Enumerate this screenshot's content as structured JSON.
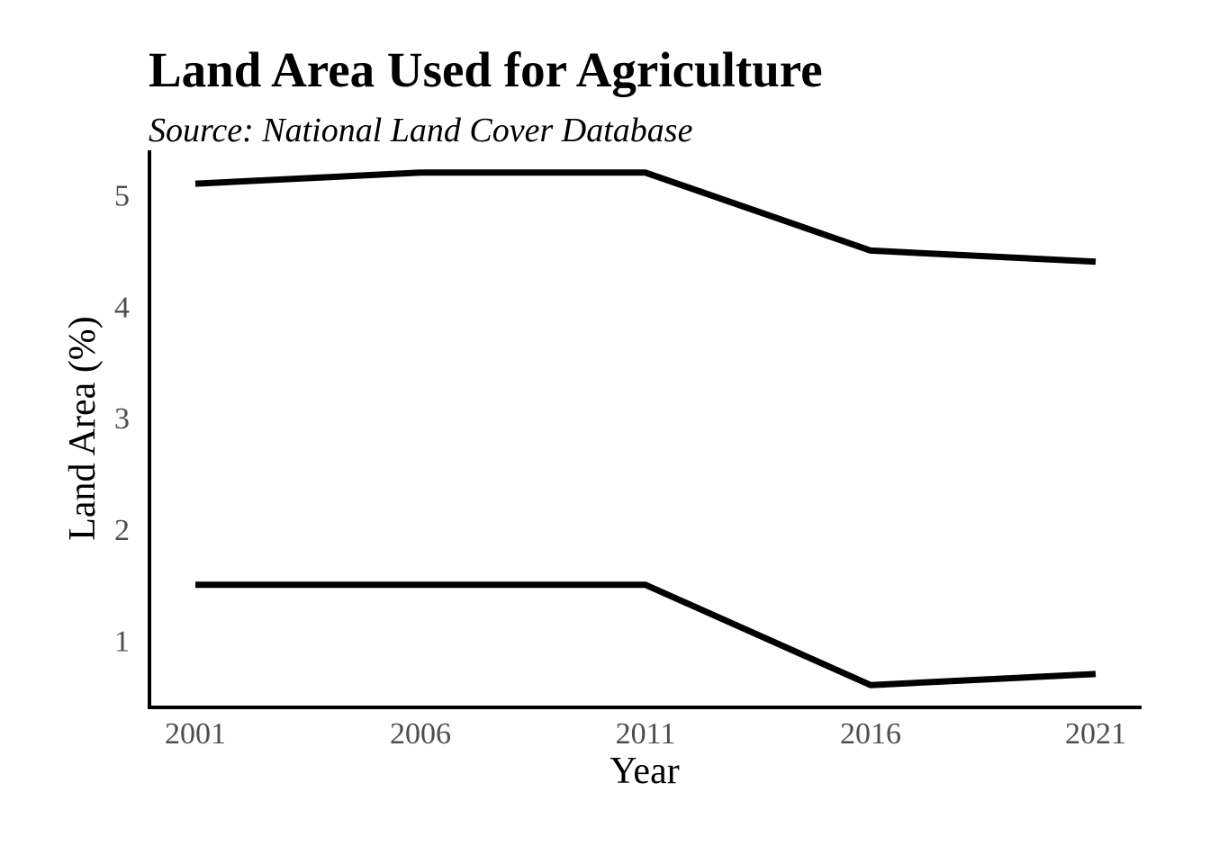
{
  "chart_data": {
    "type": "line",
    "title": "Land Area Used for Agriculture",
    "subtitle": "Source: National Land Cover Database",
    "xlabel": "Year",
    "ylabel": "Land Area (%)",
    "x": [
      2001,
      2006,
      2011,
      2016,
      2021
    ],
    "x_ticks": [
      "2001",
      "2006",
      "2011",
      "2016",
      "2021"
    ],
    "y_ticks": [
      1,
      2,
      3,
      4,
      5
    ],
    "ylim": [
      0.4,
      5.4
    ],
    "grid": false,
    "legend": "none",
    "series": [
      {
        "values": [
          5.1,
          5.2,
          5.2,
          4.5,
          4.4
        ],
        "color": "#000000"
      },
      {
        "values": [
          1.5,
          1.5,
          1.5,
          0.6,
          0.7
        ],
        "color": "#000000"
      }
    ],
    "colors": {
      "axis": "#000000",
      "tick_label": "#4d4d4d",
      "line": "#000000"
    }
  }
}
